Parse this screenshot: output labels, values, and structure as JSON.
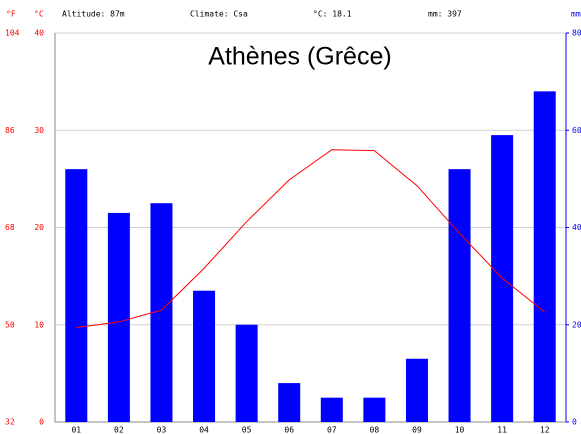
{
  "chart_data": {
    "type": "climate",
    "title": "Athènes (Grêce)",
    "header": {
      "f_unit": "°F",
      "c_unit": "°C",
      "altitude": "Altitude: 87m",
      "climate": "Climate: Csa",
      "mean_temp": "°C: 18.1",
      "total_precip": "mm: 397",
      "mm_unit": "mm"
    },
    "categories": [
      "01",
      "02",
      "03",
      "04",
      "05",
      "06",
      "07",
      "08",
      "09",
      "10",
      "11",
      "12"
    ],
    "series": [
      {
        "name": "mm",
        "color": "#0000ff",
        "axis": "y2",
        "values": [
          52,
          43,
          45,
          27,
          20,
          8,
          5,
          5,
          13,
          52,
          59,
          68
        ]
      },
      {
        "name": "°C",
        "color": "#ff0000",
        "values": [
          9.7,
          10.3,
          11.5,
          15.8,
          20.6,
          24.9,
          28.0,
          27.9,
          24.3,
          19.4,
          14.8,
          11.3
        ]
      }
    ],
    "ylim": [
      0,
      40
    ],
    "yticks": [
      0,
      10,
      20,
      30,
      40
    ],
    "y2lim": [
      0,
      80
    ],
    "y2ticks": [
      0,
      20,
      40,
      60,
      80
    ],
    "y3lim": [
      32,
      104
    ],
    "y3ticks": [
      32,
      50,
      68,
      86,
      104
    ],
    "grid": true
  }
}
